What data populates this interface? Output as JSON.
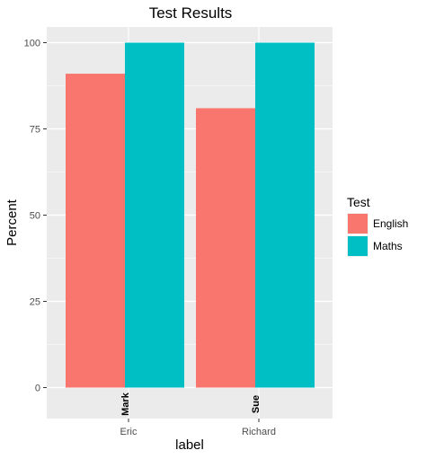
{
  "chart_data": {
    "type": "bar",
    "title": "Test Results",
    "xlabel": "label",
    "ylabel": "Percent",
    "categories": [
      "Eric",
      "Richard"
    ],
    "series": [
      {
        "name": "English",
        "values": [
          91,
          81
        ],
        "color": "#F8766D"
      },
      {
        "name": "Maths",
        "values": [
          100,
          100
        ],
        "color": "#00BFC4"
      }
    ],
    "bar_labels": [
      "Mark",
      "Sue"
    ],
    "ylim": [
      0,
      100
    ],
    "yticks": [
      0,
      25,
      50,
      75,
      100
    ],
    "grid": true,
    "legend": {
      "title": "Test",
      "placement": "right"
    },
    "panel_background": "#EBEBEB"
  }
}
